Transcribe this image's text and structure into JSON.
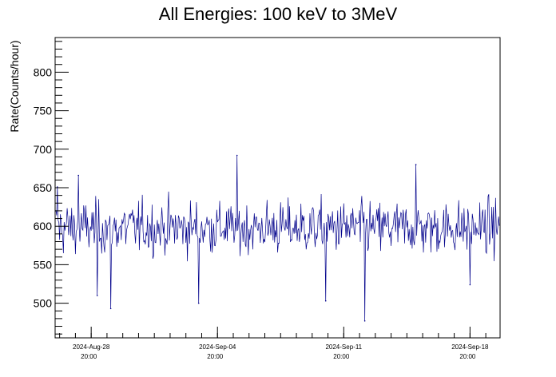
{
  "chart_data": {
    "type": "line",
    "title": "All Energies:  100 keV to 3MeV",
    "xlabel": "",
    "ylabel": "Rate(Counts/hour)",
    "xlim": [
      "2024-Aug-26 20:00",
      "2024-Sep-20 12:00"
    ],
    "ylim": [
      455,
      845
    ],
    "yticks": [
      500,
      550,
      600,
      650,
      700,
      750,
      800
    ],
    "xticks": [
      {
        "date": "2024-Aug-28",
        "time": "20:00"
      },
      {
        "date": "2024-Sep-04",
        "time": "20:00"
      },
      {
        "date": "2024-Sep-11",
        "time": "20:00"
      },
      {
        "date": "2024-Sep-18",
        "time": "20:00"
      }
    ],
    "grid": false,
    "color": "#00008b",
    "series": [
      {
        "sampling": "hourly",
        "mean": 598,
        "typical_range": [
          540,
          660
        ],
        "notable_points": [
          {
            "x": "2024-Aug-26 23:00",
            "y": 651
          },
          {
            "x": "2024-Aug-28 03:00",
            "y": 666
          },
          {
            "x": "2024-Aug-29 04:00",
            "y": 510
          },
          {
            "x": "2024-Aug-29 22:00",
            "y": 493
          },
          {
            "x": "2024-Sep-03 19:00",
            "y": 500
          },
          {
            "x": "2024-Sep-05 22:00",
            "y": 692
          },
          {
            "x": "2024-Sep-10 20:00",
            "y": 503
          },
          {
            "x": "2024-Sep-13 00:00",
            "y": 477
          },
          {
            "x": "2024-Sep-15 20:00",
            "y": 680
          },
          {
            "x": "2024-Sep-18 20:00",
            "y": 524
          }
        ]
      }
    ]
  }
}
